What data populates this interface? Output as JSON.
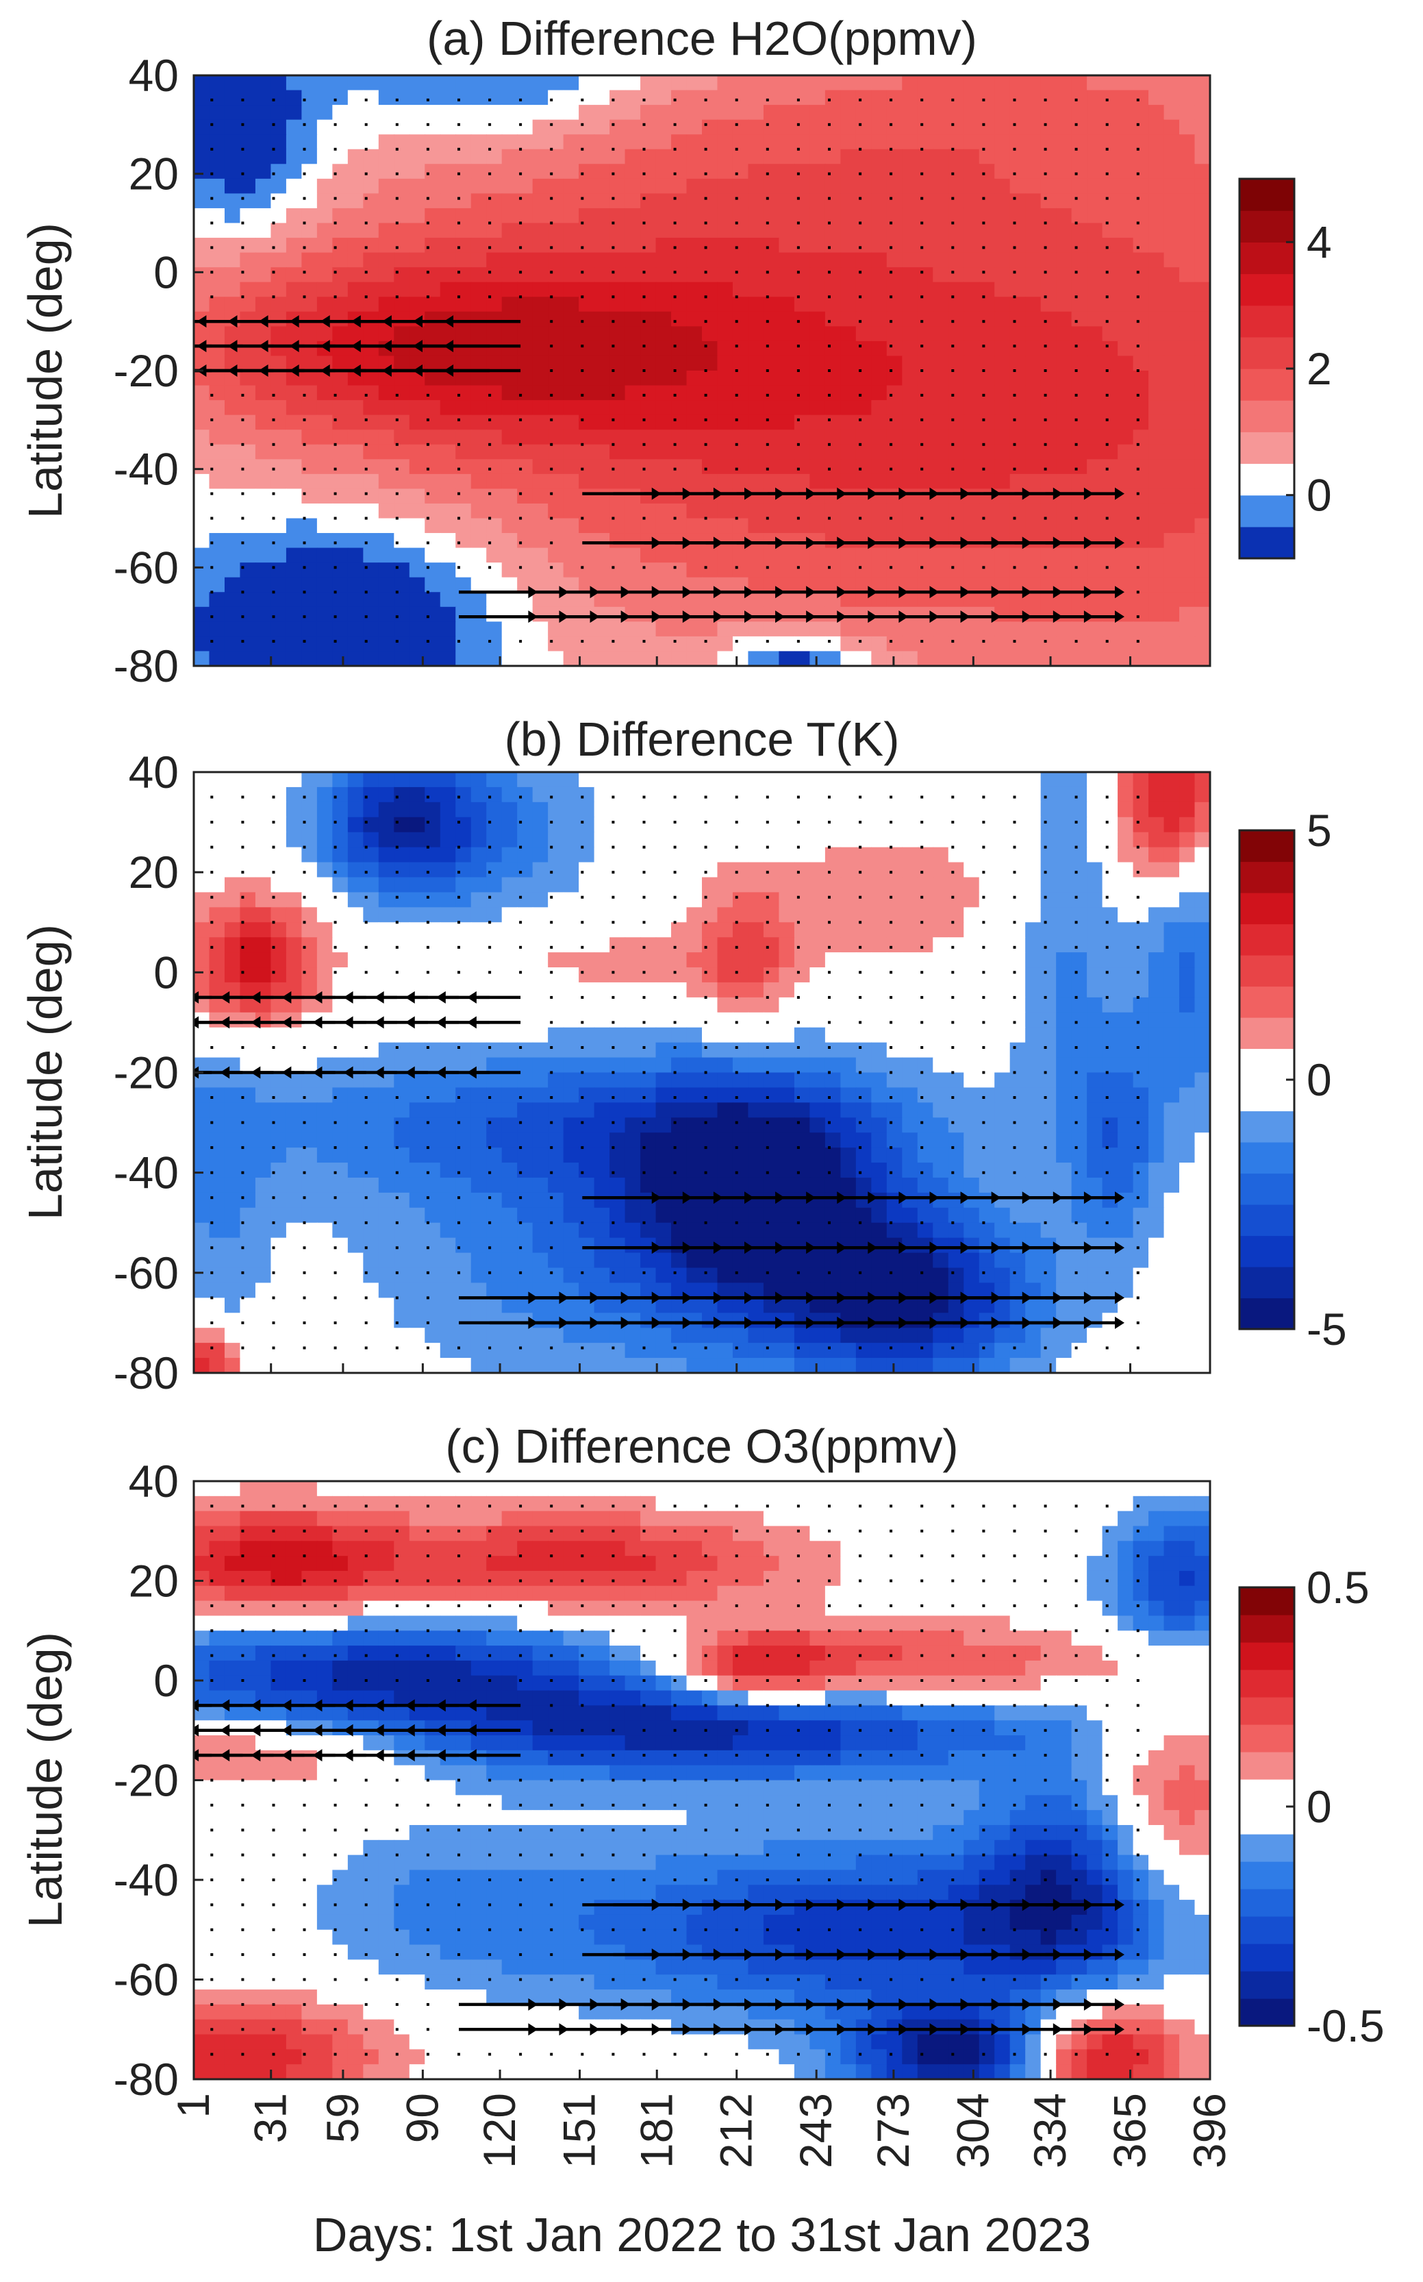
{
  "chart_data": {
    "type": "heatmap",
    "xlabel": "Days: 1st Jan 2022 to 31st Jan 2023",
    "x_ticks": [
      "1",
      "31",
      "59",
      "90",
      "120",
      "151",
      "181",
      "212",
      "243",
      "273",
      "304",
      "334",
      "365",
      "396"
    ],
    "x_range": [
      1,
      396
    ],
    "panels": [
      {
        "id": "a",
        "title": "(a) Difference H2O(ppmv)",
        "ylabel": "Latitude (deg)",
        "y_ticks": [
          "40",
          "20",
          "0",
          "-20",
          "-40",
          "-60",
          "-80"
        ],
        "ylim": [
          -80,
          40
        ],
        "colorbar": {
          "vmin": -1,
          "vmax": 5,
          "levels": 12,
          "ticks": [
            "4",
            "2",
            "0"
          ],
          "tick_values": [
            4,
            2,
            0
          ]
        },
        "blobs": [
          {
            "day": 280,
            "lat": -25,
            "sd": 150,
            "sl": 45,
            "v": 2.0
          },
          {
            "day": 400,
            "lat": -40,
            "sd": 60,
            "sl": 50,
            "v": 0.6
          },
          {
            "day": 95,
            "lat": -15,
            "sd": 80,
            "sl": 14,
            "v": 2.6
          },
          {
            "day": 240,
            "lat": -25,
            "sd": 100,
            "sl": 25,
            "v": 0.8
          },
          {
            "day": 200,
            "lat": 22,
            "sd": 110,
            "sl": 16,
            "v": 0.7
          },
          {
            "day": 330,
            "lat": 35,
            "sd": 60,
            "sl": 10,
            "v": 0.6
          },
          {
            "day": 120,
            "lat": 40,
            "sd": 40,
            "sl": 10,
            "v": -1.2
          },
          {
            "day": 60,
            "lat": -72,
            "sd": 40,
            "sl": 14,
            "v": -2.0
          },
          {
            "day": 20,
            "lat": 28,
            "sd": 20,
            "sl": 14,
            "v": -1.5
          },
          {
            "day": 235,
            "lat": -79,
            "sd": 20,
            "sl": 4,
            "v": -1.6
          }
        ],
        "arrows": [
          {
            "lat": -10,
            "from": 30,
            "to": 1,
            "day_max": 130
          },
          {
            "lat": -14,
            "from": 30,
            "to": 1,
            "day_max": 130
          },
          {
            "lat": -18,
            "from": 30,
            "to": 1,
            "day_max": 130
          },
          {
            "lat": -45,
            "from": 40,
            "to": 70,
            "day_min": 150,
            "day_max": 340
          },
          {
            "lat": -55,
            "from": 40,
            "to": 70,
            "day_min": 150,
            "day_max": 340
          },
          {
            "lat": -65,
            "from": 40,
            "to": 70,
            "day_min": 100,
            "day_max": 340
          },
          {
            "lat": -72,
            "from": 40,
            "to": 70,
            "day_min": 100,
            "day_max": 340
          }
        ]
      },
      {
        "id": "b",
        "title": "(b) Difference T(K)",
        "ylabel": "Latitude (deg)",
        "y_ticks": [
          "40",
          "20",
          "0",
          "-20",
          "-40",
          "-60",
          "-80"
        ],
        "ylim": [
          -80,
          40
        ],
        "colorbar": {
          "vmin": -5,
          "vmax": 5,
          "levels": 16,
          "ticks": [
            "5",
            "0",
            "-5"
          ],
          "tick_values": [
            5,
            0,
            -5
          ]
        },
        "blobs": [
          {
            "day": 25,
            "lat": 2,
            "sd": 18,
            "sl": 9,
            "v": 3.5
          },
          {
            "day": 80,
            "lat": 30,
            "sd": 22,
            "sl": 10,
            "v": -3.8
          },
          {
            "day": 120,
            "lat": 28,
            "sd": 30,
            "sl": 12,
            "v": -1.5
          },
          {
            "day": 215,
            "lat": 3,
            "sd": 12,
            "sl": 10,
            "v": 1.8
          },
          {
            "day": 165,
            "lat": 2,
            "sd": 45,
            "sl": 5,
            "v": 0.9
          },
          {
            "day": 270,
            "lat": 15,
            "sd": 50,
            "sl": 12,
            "v": 0.9
          },
          {
            "day": 380,
            "lat": 35,
            "sd": 15,
            "sl": 12,
            "v": 3.5
          },
          {
            "day": 150,
            "lat": -30,
            "sd": 100,
            "sl": 10,
            "v": -2.0
          },
          {
            "day": 220,
            "lat": -45,
            "sd": 35,
            "sl": 15,
            "v": -4.5
          },
          {
            "day": 280,
            "lat": -65,
            "sd": 35,
            "sl": 12,
            "v": -4.2
          },
          {
            "day": 170,
            "lat": -55,
            "sd": 70,
            "sl": 20,
            "v": -1.8
          },
          {
            "day": 360,
            "lat": -35,
            "sd": 12,
            "sl": 15,
            "v": -2.0
          },
          {
            "day": 388,
            "lat": 0,
            "sd": 15,
            "sl": 20,
            "v": -2.0
          },
          {
            "day": 340,
            "lat": 10,
            "sd": 15,
            "sl": 30,
            "v": -1.5
          },
          {
            "day": 5,
            "lat": -78,
            "sd": 10,
            "sl": 5,
            "v": 3.0
          },
          {
            "day": 10,
            "lat": -45,
            "sd": 15,
            "sl": 20,
            "v": -1.2
          }
        ],
        "arrows": [
          {
            "lat": -5,
            "from": 20,
            "to": 1,
            "day_max": 130
          },
          {
            "lat": -12,
            "from": 20,
            "to": 1,
            "day_max": 130
          },
          {
            "lat": -20,
            "from": 20,
            "to": 1,
            "day_max": 130
          },
          {
            "lat": -45,
            "from": 40,
            "to": 70,
            "day_min": 150,
            "day_max": 340
          },
          {
            "lat": -55,
            "from": 40,
            "to": 70,
            "day_min": 150,
            "day_max": 340
          },
          {
            "lat": -65,
            "from": 40,
            "to": 70,
            "day_min": 100,
            "day_max": 340
          },
          {
            "lat": -72,
            "from": 40,
            "to": 70,
            "day_min": 100,
            "day_max": 340
          }
        ]
      },
      {
        "id": "c",
        "title": "(c) Difference O3(ppmv)",
        "ylabel": "Latitude (deg)",
        "y_ticks": [
          "40",
          "20",
          "0",
          "-20",
          "-40",
          "-60",
          "-80"
        ],
        "ylim": [
          -80,
          40
        ],
        "colorbar": {
          "vmin": -0.5,
          "vmax": 0.5,
          "levels": 16,
          "ticks": [
            "0.5",
            "0",
            "-0.5"
          ],
          "tick_values": [
            0.5,
            0,
            -0.5
          ]
        },
        "blobs": [
          {
            "day": 30,
            "lat": 24,
            "sd": 35,
            "sl": 8,
            "v": 0.32
          },
          {
            "day": 150,
            "lat": 24,
            "sd": 60,
            "sl": 7,
            "v": 0.28
          },
          {
            "day": 80,
            "lat": 2,
            "sd": 80,
            "sl": 7,
            "v": -0.38
          },
          {
            "day": 200,
            "lat": -10,
            "sd": 90,
            "sl": 7,
            "v": -0.4
          },
          {
            "day": 260,
            "lat": 3,
            "sd": 70,
            "sl": 6,
            "v": 0.25
          },
          {
            "day": 220,
            "lat": 2,
            "sd": 20,
            "sl": 5,
            "v": 0.25
          },
          {
            "day": 30,
            "lat": -15,
            "sd": 40,
            "sl": 5,
            "v": 0.18
          },
          {
            "day": 260,
            "lat": -50,
            "sd": 80,
            "sl": 12,
            "v": -0.35
          },
          {
            "day": 300,
            "lat": -75,
            "sd": 30,
            "sl": 7,
            "v": -0.5
          },
          {
            "day": 350,
            "lat": -75,
            "sd": 25,
            "sl": 8,
            "v": 0.42
          },
          {
            "day": 20,
            "lat": -75,
            "sd": 40,
            "sl": 8,
            "v": 0.3
          },
          {
            "day": 385,
            "lat": 20,
            "sd": 20,
            "sl": 10,
            "v": -0.32
          },
          {
            "day": 340,
            "lat": -40,
            "sd": 25,
            "sl": 15,
            "v": -0.3
          },
          {
            "day": 380,
            "lat": -25,
            "sd": 20,
            "sl": 15,
            "v": 0.2
          },
          {
            "day": 100,
            "lat": -45,
            "sd": 40,
            "sl": 12,
            "v": -0.12
          }
        ],
        "arrows": [
          {
            "lat": -5,
            "from": 20,
            "to": 1,
            "day_max": 130
          },
          {
            "lat": -10,
            "from": 20,
            "to": 1,
            "day_max": 130
          },
          {
            "lat": -15,
            "from": 20,
            "to": 1,
            "day_max": 130
          },
          {
            "lat": -45,
            "from": 40,
            "to": 70,
            "day_min": 150,
            "day_max": 340
          },
          {
            "lat": -55,
            "from": 40,
            "to": 70,
            "day_min": 150,
            "day_max": 340
          },
          {
            "lat": -65,
            "from": 40,
            "to": 70,
            "day_min": 100,
            "day_max": 340
          },
          {
            "lat": -72,
            "from": 40,
            "to": 70,
            "day_min": 100,
            "day_max": 340
          }
        ]
      }
    ]
  }
}
